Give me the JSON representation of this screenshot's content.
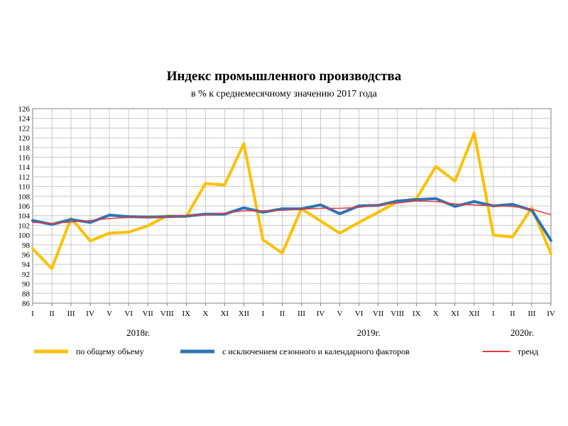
{
  "chart_data": {
    "type": "line",
    "title": "Индекс промышленного производства",
    "subtitle": "в % к среднемесячному значению 2017  года",
    "xlabel": "",
    "ylabel": "",
    "ylim": [
      86,
      126
    ],
    "yticks": [
      86,
      88,
      90,
      92,
      94,
      96,
      98,
      100,
      102,
      104,
      106,
      108,
      110,
      112,
      114,
      116,
      118,
      120,
      122,
      124,
      126
    ],
    "grid": true,
    "legend_position": "bottom",
    "categories": [
      "I",
      "II",
      "III",
      "IV",
      "V",
      "VI",
      "VII",
      "VIII",
      "IX",
      "X",
      "XI",
      "XII",
      "I",
      "II",
      "III",
      "IV",
      "V",
      "VI",
      "VII",
      "VIII",
      "IX",
      "X",
      "XI",
      "XII",
      "I",
      "II",
      "III",
      "IV"
    ],
    "year_labels": [
      {
        "label": "2018г.",
        "center_index": 5.5
      },
      {
        "label": "2019г.",
        "center_index": 17.5
      },
      {
        "label": "2020г.",
        "center_index": 25.5
      }
    ],
    "series": [
      {
        "name": "по общему объему",
        "color": "#FFC000",
        "width": 4,
        "values": [
          97.2,
          93.1,
          103.5,
          98.8,
          100.4,
          100.6,
          101.9,
          104.0,
          103.8,
          110.6,
          110.3,
          118.8,
          99.0,
          96.3,
          105.4,
          102.9,
          100.4,
          102.6,
          104.7,
          106.8,
          107.5,
          114.1,
          111.1,
          121.0,
          100.0,
          99.6,
          105.6,
          96.2
        ]
      },
      {
        "name": "с исключением сезонного и календарного факторов",
        "color": "#2E75B6",
        "width": 4,
        "values": [
          103.0,
          102.2,
          103.2,
          102.6,
          104.1,
          103.8,
          103.7,
          103.8,
          103.9,
          104.3,
          104.3,
          105.6,
          104.7,
          105.4,
          105.4,
          106.2,
          104.4,
          106.0,
          106.1,
          107.0,
          107.3,
          107.5,
          105.9,
          106.9,
          106.0,
          106.3,
          105.1,
          98.9
        ]
      },
      {
        "name": "тренд",
        "color": "#E8383D",
        "width": 1.5,
        "values": [
          102.6,
          102.4,
          102.7,
          103.0,
          103.4,
          103.6,
          103.7,
          103.8,
          104.0,
          104.2,
          104.5,
          105.0,
          105.0,
          105.1,
          105.3,
          105.5,
          105.5,
          105.7,
          106.2,
          106.6,
          107.0,
          106.9,
          106.4,
          106.2,
          106.0,
          105.9,
          105.3,
          104.2
        ]
      }
    ]
  }
}
